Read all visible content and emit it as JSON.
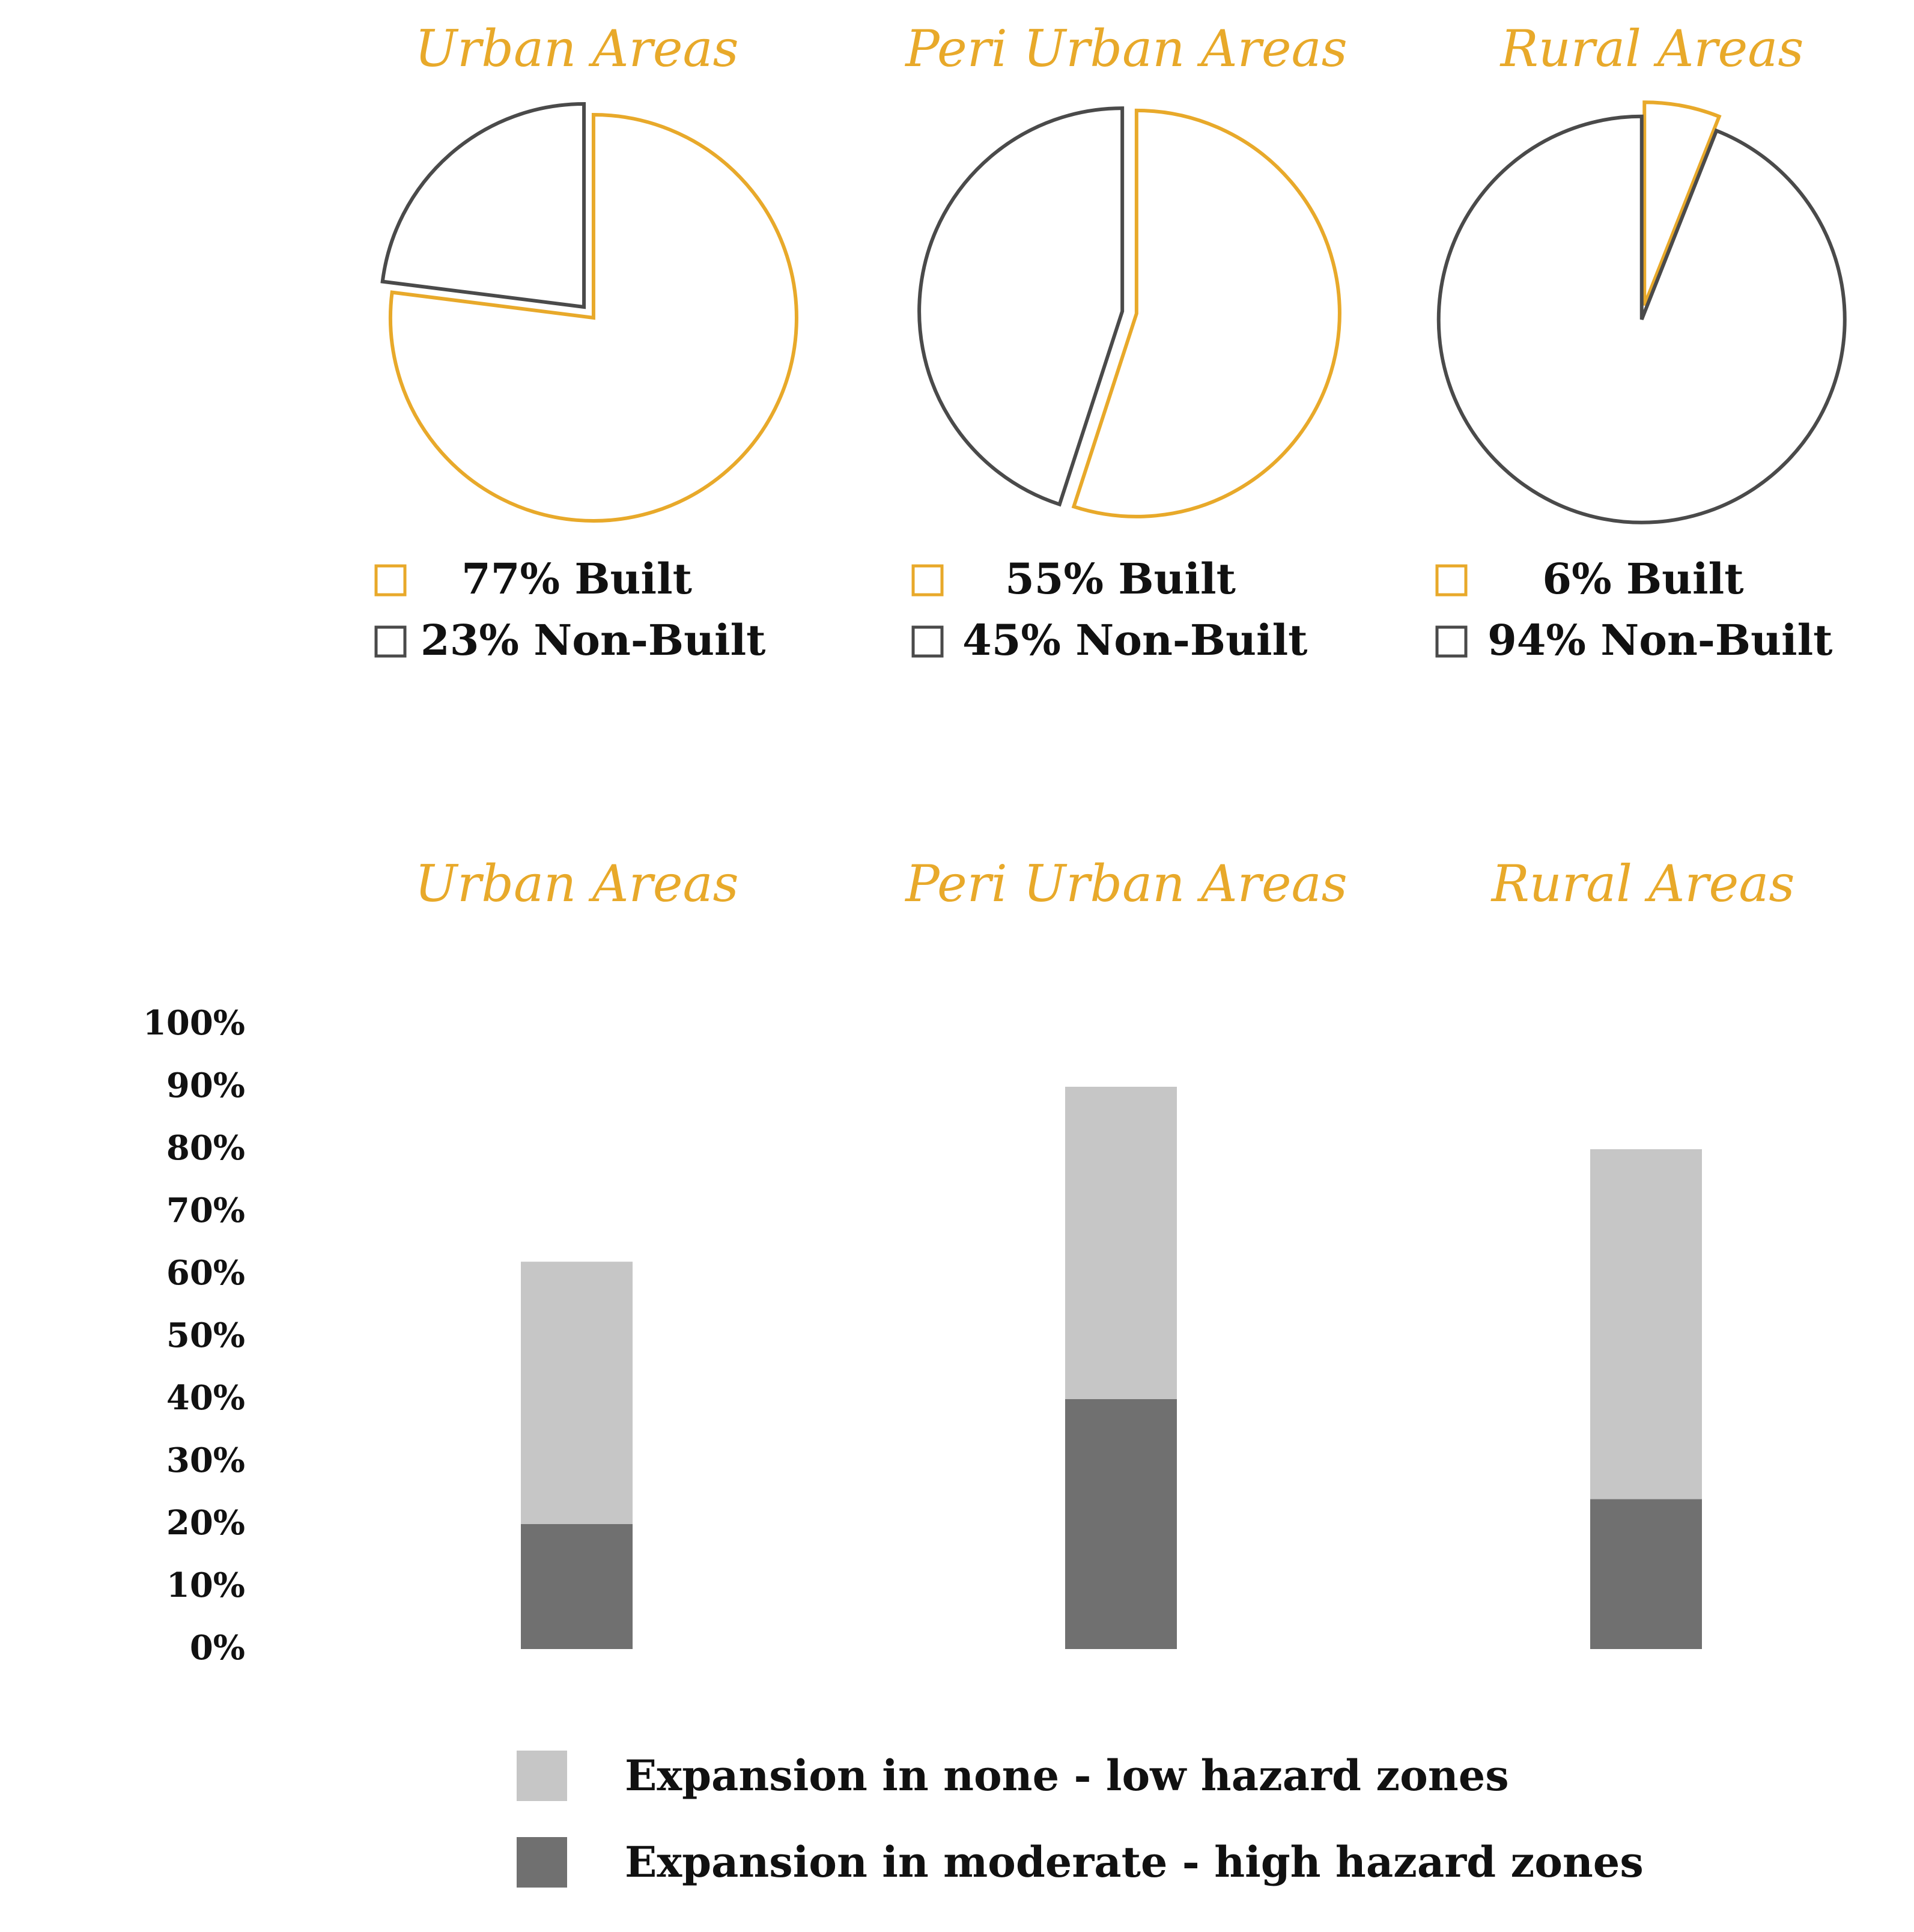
{
  "colors": {
    "built": "#E8A92A",
    "non_built": "#4A4A4A",
    "high_hazard": "#707070",
    "low_hazard": "#C6C6C6",
    "title": "#E8A92A"
  },
  "chart_data": [
    {
      "type": "pie",
      "title": "Urban Areas",
      "slices": [
        {
          "label": "Built",
          "value": 77,
          "legend": "77% Built"
        },
        {
          "label": "Non-Built",
          "value": 23,
          "legend": "23% Non-Built"
        }
      ]
    },
    {
      "type": "pie",
      "title": "Peri Urban Areas",
      "slices": [
        {
          "label": "Built",
          "value": 55,
          "legend": "55% Built"
        },
        {
          "label": "Non-Built",
          "value": 45,
          "legend": "45% Non-Built"
        }
      ]
    },
    {
      "type": "pie",
      "title": "Rural Areas",
      "slices": [
        {
          "label": "Built",
          "value": 6,
          "legend": "6% Built"
        },
        {
          "label": "Non-Built",
          "value": 94,
          "legend": "94% Non-Built"
        }
      ]
    },
    {
      "type": "bar",
      "stacked": true,
      "categories": [
        "Urban Areas",
        "Peri Urban Areas",
        "Rural Areas"
      ],
      "series": [
        {
          "name": "Expansion in moderate - high hazard zones",
          "values": [
            20,
            40,
            24
          ]
        },
        {
          "name": "Expansion in none - low hazard zones",
          "values": [
            42,
            50,
            56
          ]
        }
      ],
      "ylim": [
        0,
        100
      ],
      "yticks": [
        "0%",
        "10%",
        "20%",
        "30%",
        "40%",
        "50%",
        "60%",
        "70%",
        "80%",
        "90%",
        "100%"
      ],
      "legend_order": [
        "Expansion in none - low hazard zones",
        "Expansion in moderate - high hazard zones"
      ]
    }
  ]
}
